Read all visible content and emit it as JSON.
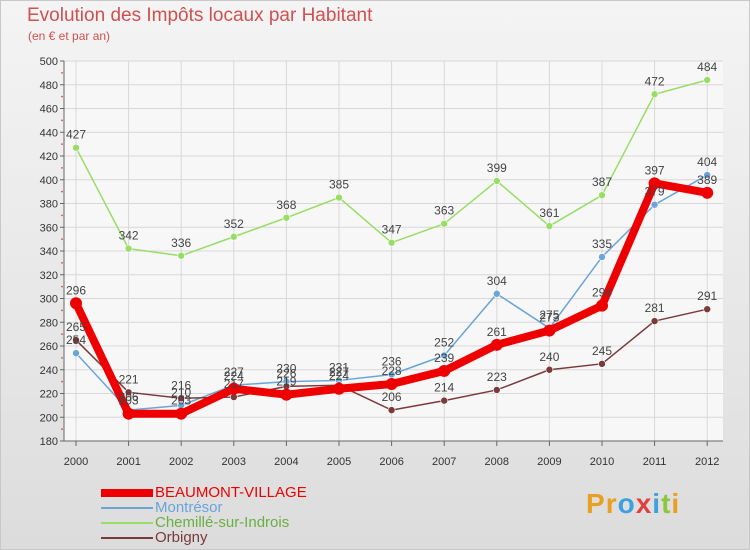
{
  "title": "Evolution des Impôts locaux par Habitant",
  "subtitle": "(en € et par an)",
  "logo_text": "Proxiti",
  "logo_letters": [
    {
      "ch": "P",
      "color": "#e8a020"
    },
    {
      "ch": "r",
      "color": "#e8a020"
    },
    {
      "ch": "o",
      "color": "#3fa0e0"
    },
    {
      "ch": "x",
      "color": "#e04040"
    },
    {
      "ch": "i",
      "color": "#3fa0e0"
    },
    {
      "ch": "t",
      "color": "#8cc63f"
    },
    {
      "ch": "i",
      "color": "#e8a020"
    }
  ],
  "chart_data": {
    "type": "line",
    "title": "Evolution des Impôts locaux par Habitant",
    "subtitle": "(en € et par an)",
    "xlabel": "",
    "ylabel": "",
    "ylim": [
      180,
      500
    ],
    "ytick_step": 20,
    "grid": true,
    "legend_position": "bottom-left",
    "categories": [
      "2000",
      "2001",
      "2002",
      "2003",
      "2004",
      "2005",
      "2006",
      "2007",
      "2008",
      "2009",
      "2010",
      "2011",
      "2012"
    ],
    "series": [
      {
        "name": "BEAUMONT-VILLAGE",
        "color": "#ee0000",
        "width": 8,
        "marker": 6,
        "labels": true,
        "values": [
          296,
          203,
          203,
          224,
          219,
          224,
          228,
          239,
          261,
          273,
          294,
          397,
          389
        ]
      },
      {
        "name": "Montrésor",
        "color": "#6aa4d8",
        "width": 1.5,
        "marker": 3.5,
        "labels": true,
        "values": [
          254,
          206,
          210,
          227,
          230,
          231,
          236,
          252,
          304,
          275,
          335,
          379,
          404
        ]
      },
      {
        "name": "Chemillé-sur-Indrois",
        "color": "#99dd66",
        "width": 1.5,
        "marker": 3.5,
        "labels": true,
        "values": [
          427,
          342,
          336,
          352,
          368,
          385,
          347,
          363,
          399,
          361,
          387,
          472,
          484
        ]
      },
      {
        "name": "Orbigny",
        "color": "#7a3a3a",
        "width": 1.5,
        "marker": 3.5,
        "labels": true,
        "values": [
          265,
          221,
          216,
          217,
          226,
          227,
          206,
          214,
          223,
          240,
          245,
          281,
          291
        ]
      }
    ]
  }
}
